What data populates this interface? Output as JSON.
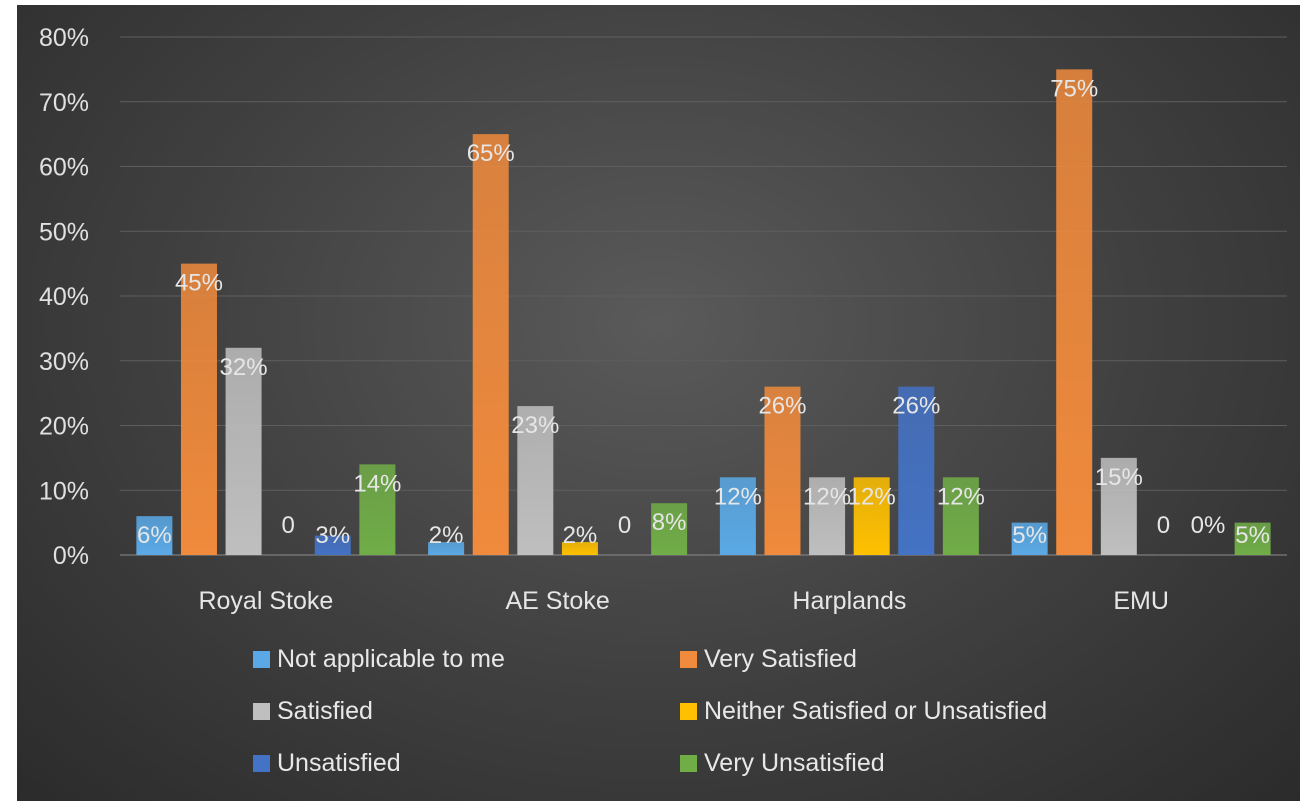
{
  "chart_data": {
    "type": "bar",
    "categories": [
      "Royal Stoke",
      "AE Stoke",
      "Harplands",
      "EMU"
    ],
    "ylim": [
      0,
      80
    ],
    "yticks": [
      "0%",
      "10%",
      "20%",
      "30%",
      "40%",
      "50%",
      "60%",
      "70%",
      "80%"
    ],
    "grid": true,
    "legend_position": "bottom",
    "series": [
      {
        "name": "Not applicable to me",
        "color": "#5aa9e6",
        "values": [
          6,
          2,
          12,
          5
        ],
        "labels": [
          "6%",
          "2%",
          "12%",
          "5%"
        ]
      },
      {
        "name": "Very Satisfied",
        "color": "#f08a3c",
        "values": [
          45,
          65,
          26,
          75
        ],
        "labels": [
          "45%",
          "65%",
          "26%",
          "75%"
        ]
      },
      {
        "name": "Satisfied",
        "color": "#bfbfbf",
        "values": [
          32,
          23,
          12,
          15
        ],
        "labels": [
          "32%",
          "23%",
          "12%",
          "15%"
        ]
      },
      {
        "name": "Neither Satisfied or Unsatisfied",
        "color": "#ffc000",
        "values": [
          0,
          2,
          12,
          0
        ],
        "labels": [
          "0",
          "2%",
          "12%",
          "0"
        ]
      },
      {
        "name": "Unsatisfied",
        "color": "#4472c4",
        "values": [
          3,
          0,
          26,
          0
        ],
        "labels": [
          "3%",
          "0",
          "26%",
          "0%"
        ]
      },
      {
        "name": "Very Unsatisfied",
        "color": "#70ad47",
        "values": [
          14,
          8,
          12,
          5
        ],
        "labels": [
          "14%",
          "8%",
          "12%",
          "5%"
        ]
      }
    ]
  }
}
